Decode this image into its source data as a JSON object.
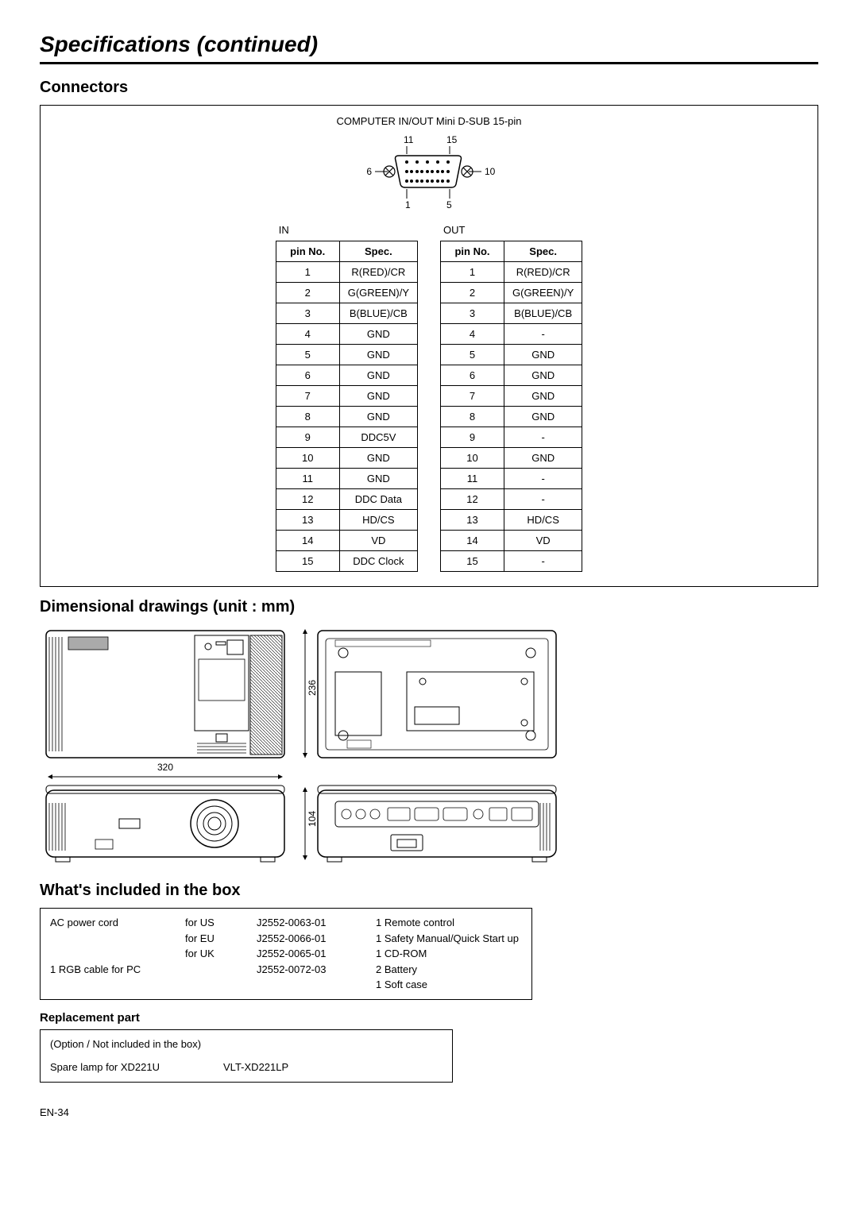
{
  "pageTitle": "Specifications (continued)",
  "sections": {
    "connectors": {
      "title": "Connectors",
      "header": "COMPUTER IN/OUT Mini D-SUB 15-pin",
      "labels": {
        "in": "IN",
        "out": "OUT"
      },
      "dsubLabels": {
        "topLeft": "11",
        "topRight": "15",
        "midLeft": "6",
        "midRight": "10",
        "botLeft": "1",
        "botRight": "5"
      },
      "columns": {
        "pin": "pin No.",
        "spec": "Spec."
      },
      "colors": {
        "border": "#000000",
        "text": "#000000"
      },
      "in": [
        {
          "pin": "1",
          "spec": "R(RED)/CR"
        },
        {
          "pin": "2",
          "spec": "G(GREEN)/Y"
        },
        {
          "pin": "3",
          "spec": "B(BLUE)/CB"
        },
        {
          "pin": "4",
          "spec": "GND"
        },
        {
          "pin": "5",
          "spec": "GND"
        },
        {
          "pin": "6",
          "spec": "GND"
        },
        {
          "pin": "7",
          "spec": "GND"
        },
        {
          "pin": "8",
          "spec": "GND"
        },
        {
          "pin": "9",
          "spec": "DDC5V"
        },
        {
          "pin": "10",
          "spec": "GND"
        },
        {
          "pin": "11",
          "spec": "GND"
        },
        {
          "pin": "12",
          "spec": "DDC Data"
        },
        {
          "pin": "13",
          "spec": "HD/CS"
        },
        {
          "pin": "14",
          "spec": "VD"
        },
        {
          "pin": "15",
          "spec": "DDC Clock"
        }
      ],
      "out": [
        {
          "pin": "1",
          "spec": "R(RED)/CR"
        },
        {
          "pin": "2",
          "spec": "G(GREEN)/Y"
        },
        {
          "pin": "3",
          "spec": "B(BLUE)/CB"
        },
        {
          "pin": "4",
          "spec": "-"
        },
        {
          "pin": "5",
          "spec": "GND"
        },
        {
          "pin": "6",
          "spec": "GND"
        },
        {
          "pin": "7",
          "spec": "GND"
        },
        {
          "pin": "8",
          "spec": "GND"
        },
        {
          "pin": "9",
          "spec": "-"
        },
        {
          "pin": "10",
          "spec": "GND"
        },
        {
          "pin": "11",
          "spec": "-"
        },
        {
          "pin": "12",
          "spec": "-"
        },
        {
          "pin": "13",
          "spec": "HD/CS"
        },
        {
          "pin": "14",
          "spec": "VD"
        },
        {
          "pin": "15",
          "spec": "-"
        }
      ]
    },
    "dimensional": {
      "title": "Dimensional drawings (unit : mm)",
      "dims": {
        "width320": "320",
        "height236": "236",
        "height104": "104"
      }
    },
    "included": {
      "title": "What's included in the box",
      "left": [
        {
          "qty": "",
          "name": "AC power cord",
          "region": "for US",
          "part": "J2552-0063-01"
        },
        {
          "qty": "",
          "name": "",
          "region": "for EU",
          "part": "J2552-0066-01"
        },
        {
          "qty": "",
          "name": "",
          "region": "for UK",
          "part": "J2552-0065-01"
        },
        {
          "qty": "1",
          "name": "RGB cable for PC",
          "region": "",
          "part": "J2552-0072-03"
        }
      ],
      "right": [
        {
          "qty": "1",
          "name": "Remote control"
        },
        {
          "qty": "1",
          "name": "Safety Manual/Quick Start up"
        },
        {
          "qty": "1",
          "name": "CD-ROM"
        },
        {
          "qty": "2",
          "name": "Battery"
        },
        {
          "qty": "1",
          "name": "Soft case"
        }
      ]
    },
    "replacement": {
      "title": "Replacement part",
      "note": "(Option / Not included in the box)",
      "item": "Spare lamp for XD221U",
      "part": "VLT-XD221LP"
    }
  },
  "pageNum": "EN-34"
}
